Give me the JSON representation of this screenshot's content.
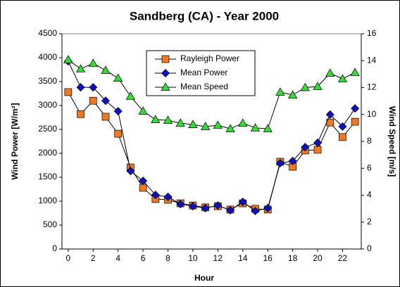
{
  "chart_data": {
    "type": "line",
    "title": "Sandberg (CA) - Year 2000",
    "xlabel": "Hour",
    "ylabel": "Wind Power [W/m²]",
    "y2label": "Wind Speed [m/s]",
    "x": [
      0,
      1,
      2,
      3,
      4,
      5,
      6,
      7,
      8,
      9,
      10,
      11,
      12,
      13,
      14,
      15,
      16,
      17,
      18,
      19,
      20,
      21,
      22,
      23
    ],
    "xlim": [
      -0.5,
      23.5
    ],
    "xticks": [
      0,
      2,
      4,
      6,
      8,
      10,
      12,
      14,
      16,
      18,
      20,
      22
    ],
    "ylim": [
      0,
      4500
    ],
    "yticks": [
      0,
      500,
      1000,
      1500,
      2000,
      2500,
      3000,
      3500,
      4000,
      4500
    ],
    "y2lim": [
      0,
      16
    ],
    "y2ticks": [
      0,
      2,
      4,
      6,
      8,
      10,
      12,
      14,
      16
    ],
    "series": [
      {
        "name": "Rayleigh Power",
        "color": "#f07820",
        "marker": "square",
        "values": [
          3280,
          2820,
          3100,
          2765,
          2410,
          1705,
          1280,
          1045,
          1030,
          955,
          910,
          870,
          895,
          825,
          955,
          840,
          825,
          1825,
          1720,
          2060,
          2075,
          2645,
          2340,
          2660
        ]
      },
      {
        "name": "Mean Power",
        "color": "#1010c8",
        "marker": "diamond",
        "values": [
          3925,
          3380,
          3380,
          3100,
          2880,
          1630,
          1425,
          1130,
          1090,
          940,
          895,
          855,
          910,
          810,
          985,
          795,
          855,
          1795,
          1840,
          2130,
          2220,
          2810,
          2560,
          2940
        ]
      },
      {
        "name": "Mean Speed",
        "color": "#33dd33",
        "marker": "triangle",
        "axis": "y2",
        "values": [
          14.07,
          13.39,
          13.8,
          13.28,
          12.7,
          11.35,
          10.25,
          9.62,
          9.57,
          9.36,
          9.25,
          9.1,
          9.2,
          8.94,
          9.36,
          9.0,
          8.94,
          11.66,
          11.45,
          12.0,
          12.08,
          13.07,
          12.65,
          13.12
        ]
      }
    ]
  }
}
